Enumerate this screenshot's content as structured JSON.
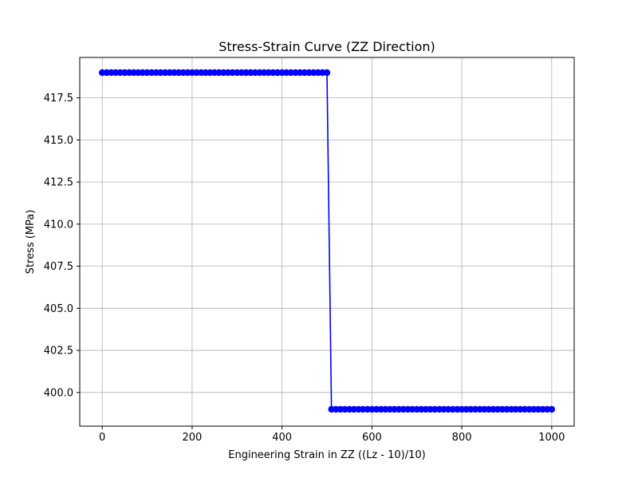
{
  "chart_data": {
    "type": "line",
    "title": "Stress-Strain Curve (ZZ Direction)",
    "xlabel": "Engineering Strain in ZZ ((Lz - 10)/10)",
    "ylabel": "Stress (MPa)",
    "xlim": [
      -50,
      1050
    ],
    "ylim": [
      398.0,
      419.9
    ],
    "grid": true,
    "x_ticks": [
      0,
      200,
      400,
      600,
      800,
      1000
    ],
    "x_tick_labels": [
      "0",
      "200",
      "400",
      "600",
      "800",
      "1000"
    ],
    "y_ticks": [
      400.0,
      402.5,
      405.0,
      407.5,
      410.0,
      412.5,
      415.0,
      417.5
    ],
    "y_tick_labels": [
      "400.0",
      "402.5",
      "405.0",
      "407.5",
      "410.0",
      "412.5",
      "415.0",
      "417.5"
    ],
    "series": [
      {
        "color": "#0000ff",
        "marker": "circle",
        "x": [
          0,
          10,
          20,
          30,
          40,
          50,
          60,
          70,
          80,
          90,
          100,
          110,
          120,
          130,
          140,
          150,
          160,
          170,
          180,
          190,
          200,
          210,
          220,
          230,
          240,
          250,
          260,
          270,
          280,
          290,
          300,
          310,
          320,
          330,
          340,
          350,
          360,
          370,
          380,
          390,
          400,
          410,
          420,
          430,
          440,
          450,
          460,
          470,
          480,
          490,
          500,
          510,
          520,
          530,
          540,
          550,
          560,
          570,
          580,
          590,
          600,
          610,
          620,
          630,
          640,
          650,
          660,
          670,
          680,
          690,
          700,
          710,
          720,
          730,
          740,
          750,
          760,
          770,
          780,
          790,
          800,
          810,
          820,
          830,
          840,
          850,
          860,
          870,
          880,
          890,
          900,
          910,
          920,
          930,
          940,
          950,
          960,
          970,
          980,
          990,
          1000
        ],
        "y": [
          419,
          419,
          419,
          419,
          419,
          419,
          419,
          419,
          419,
          419,
          419,
          419,
          419,
          419,
          419,
          419,
          419,
          419,
          419,
          419,
          419,
          419,
          419,
          419,
          419,
          419,
          419,
          419,
          419,
          419,
          419,
          419,
          419,
          419,
          419,
          419,
          419,
          419,
          419,
          419,
          419,
          419,
          419,
          419,
          419,
          419,
          419,
          419,
          419,
          419,
          419,
          399,
          399,
          399,
          399,
          399,
          399,
          399,
          399,
          399,
          399,
          399,
          399,
          399,
          399,
          399,
          399,
          399,
          399,
          399,
          399,
          399,
          399,
          399,
          399,
          399,
          399,
          399,
          399,
          399,
          399,
          399,
          399,
          399,
          399,
          399,
          399,
          399,
          399,
          399,
          399,
          399,
          399,
          399,
          399,
          399,
          399,
          399,
          399,
          399,
          399
        ]
      }
    ]
  }
}
